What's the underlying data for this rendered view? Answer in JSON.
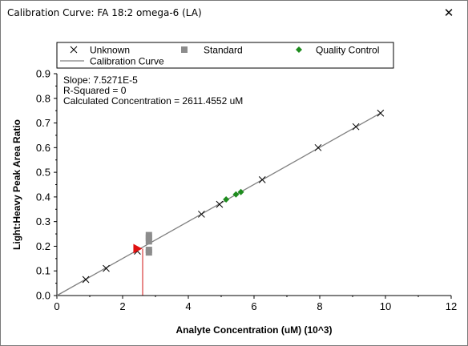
{
  "window": {
    "title": "Calibration Curve: FA 18:2 omega-6 (LA)",
    "close_glyph": "✕"
  },
  "legend": {
    "unknown": "Unknown",
    "standard": "Standard",
    "qc": "Quality Control",
    "curve": "Calibration Curve"
  },
  "stats": {
    "slope": "Slope: 7.5271E-5",
    "rsq": "R-Squared = 0",
    "conc": "Calculated Concentration = 2611.4552 uM"
  },
  "colors": {
    "unknown": "#000000",
    "standard": "#8c8c8c",
    "qc": "#1e8c1e",
    "line": "#808080",
    "selected": "#e01010",
    "drop_line": "#e06060"
  },
  "chart_data": {
    "type": "scatter",
    "xlabel": "Analyte Concentration (uM) (10^3)",
    "ylabel": "Light:Heavy Peak Area Ratio",
    "xlim": [
      0,
      12
    ],
    "ylim": [
      0,
      0.9
    ],
    "x_ticks": [
      0,
      2,
      4,
      6,
      8,
      10,
      12
    ],
    "y_ticks": [
      0.0,
      0.1,
      0.2,
      0.3,
      0.4,
      0.5,
      0.6,
      0.7,
      0.8,
      0.9
    ],
    "x_tick_labels": [
      "0",
      "2",
      "4",
      "6",
      "8",
      "10",
      "12"
    ],
    "y_tick_labels": [
      "0.0",
      "0.1",
      "0.2",
      "0.3",
      "0.4",
      "0.5",
      "0.6",
      "0.7",
      "0.8",
      "0.9"
    ],
    "calibration_line": {
      "x": [
        0,
        9.85
      ],
      "y": [
        0,
        0.74
      ]
    },
    "series": [
      {
        "name": "Unknown",
        "marker": "x",
        "x": [
          0.88,
          1.5,
          2.45,
          4.4,
          4.95,
          6.25,
          7.95,
          9.1,
          9.85
        ],
        "y": [
          0.065,
          0.11,
          0.18,
          0.33,
          0.37,
          0.47,
          0.6,
          0.685,
          0.74
        ]
      },
      {
        "name": "Standard",
        "marker": "square",
        "x": [
          2.8,
          2.8,
          2.8,
          2.8,
          2.8
        ],
        "y": [
          0.175,
          0.185,
          0.22,
          0.235,
          0.245
        ]
      },
      {
        "name": "Quality Control",
        "marker": "diamond",
        "x": [
          5.15,
          5.45,
          5.6
        ],
        "y": [
          0.39,
          0.41,
          0.42
        ]
      }
    ],
    "selected_point": {
      "x": 2.45,
      "y": 0.19
    },
    "drop_line_x": 2.61
  }
}
